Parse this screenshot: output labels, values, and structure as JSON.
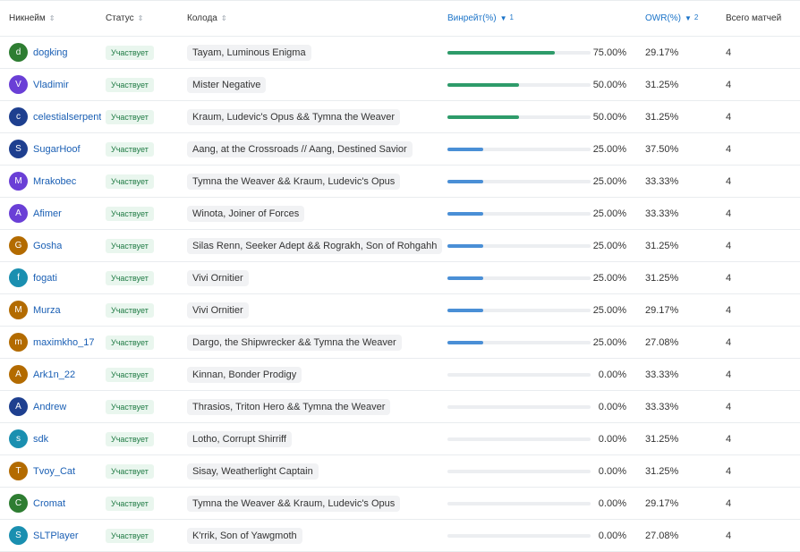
{
  "headers": {
    "nick": "Никнейм",
    "status": "Статус",
    "deck": "Колода",
    "winrate": "Винрейт(%)",
    "winrate_sup": "1",
    "owr": "OWR(%)",
    "owr_sup": "2",
    "matches": "Всего матчей"
  },
  "colors": {
    "bar_green": "#2e9b6a",
    "bar_blue": "#4a8fd6",
    "avatar_green": "#2e7d32",
    "avatar_purple": "#6a3fd6",
    "avatar_navy": "#1e3f8f",
    "avatar_orange": "#b36b00",
    "avatar_teal": "#1a8fb0"
  },
  "rows": [
    {
      "initial": "d",
      "nick": "dogking",
      "status": "Участвует",
      "deck": "Tayam, Luminous Enigma",
      "winrate": 75,
      "winrate_text": "75.00%",
      "owr": "29.17%",
      "matches": "4",
      "avatar": "#2e7d32"
    },
    {
      "initial": "V",
      "nick": "Vladimir",
      "status": "Участвует",
      "deck": "Mister Negative",
      "winrate": 50,
      "winrate_text": "50.00%",
      "owr": "31.25%",
      "matches": "4",
      "avatar": "#6a3fd6"
    },
    {
      "initial": "c",
      "nick": "celestialserpent",
      "status": "Участвует",
      "deck": "Kraum, Ludevic's Opus && Tymna the Weaver",
      "winrate": 50,
      "winrate_text": "50.00%",
      "owr": "31.25%",
      "matches": "4",
      "avatar": "#1e3f8f"
    },
    {
      "initial": "S",
      "nick": "SugarHoof",
      "status": "Участвует",
      "deck": "Aang, at the Crossroads // Aang, Destined Savior",
      "winrate": 25,
      "winrate_text": "25.00%",
      "owr": "37.50%",
      "matches": "4",
      "avatar": "#1e3f8f"
    },
    {
      "initial": "M",
      "nick": "Mrakobec",
      "status": "Участвует",
      "deck": "Tymna the Weaver && Kraum, Ludevic's Opus",
      "winrate": 25,
      "winrate_text": "25.00%",
      "owr": "33.33%",
      "matches": "4",
      "avatar": "#6a3fd6"
    },
    {
      "initial": "A",
      "nick": "Afimer",
      "status": "Участвует",
      "deck": "Winota, Joiner of Forces",
      "winrate": 25,
      "winrate_text": "25.00%",
      "owr": "33.33%",
      "matches": "4",
      "avatar": "#6a3fd6"
    },
    {
      "initial": "G",
      "nick": "Gosha",
      "status": "Участвует",
      "deck": "Silas Renn, Seeker Adept && Rograkh, Son of Rohgahh",
      "winrate": 25,
      "winrate_text": "25.00%",
      "owr": "31.25%",
      "matches": "4",
      "avatar": "#b36b00"
    },
    {
      "initial": "f",
      "nick": "fogati",
      "status": "Участвует",
      "deck": "Vivi Ornitier",
      "winrate": 25,
      "winrate_text": "25.00%",
      "owr": "31.25%",
      "matches": "4",
      "avatar": "#1a8fb0"
    },
    {
      "initial": "M",
      "nick": "Murza",
      "status": "Участвует",
      "deck": "Vivi Ornitier",
      "winrate": 25,
      "winrate_text": "25.00%",
      "owr": "29.17%",
      "matches": "4",
      "avatar": "#b36b00"
    },
    {
      "initial": "m",
      "nick": "maximkho_17",
      "status": "Участвует",
      "deck": "Dargo, the Shipwrecker && Tymna the Weaver",
      "winrate": 25,
      "winrate_text": "25.00%",
      "owr": "27.08%",
      "matches": "4",
      "avatar": "#b36b00"
    },
    {
      "initial": "A",
      "nick": "Ark1n_22",
      "status": "Участвует",
      "deck": "Kinnan, Bonder Prodigy",
      "winrate": 0,
      "winrate_text": "0.00%",
      "owr": "33.33%",
      "matches": "4",
      "avatar": "#b36b00"
    },
    {
      "initial": "A",
      "nick": "Andrew",
      "status": "Участвует",
      "deck": "Thrasios, Triton Hero && Tymna the Weaver",
      "winrate": 0,
      "winrate_text": "0.00%",
      "owr": "33.33%",
      "matches": "4",
      "avatar": "#1e3f8f"
    },
    {
      "initial": "s",
      "nick": "sdk",
      "status": "Участвует",
      "deck": "Lotho, Corrupt Shirriff",
      "winrate": 0,
      "winrate_text": "0.00%",
      "owr": "31.25%",
      "matches": "4",
      "avatar": "#1a8fb0"
    },
    {
      "initial": "T",
      "nick": "Tvoy_Cat",
      "status": "Участвует",
      "deck": "Sisay, Weatherlight Captain",
      "winrate": 0,
      "winrate_text": "0.00%",
      "owr": "31.25%",
      "matches": "4",
      "avatar": "#b36b00"
    },
    {
      "initial": "C",
      "nick": "Cromat",
      "status": "Участвует",
      "deck": "Tymna the Weaver && Kraum, Ludevic's Opus",
      "winrate": 0,
      "winrate_text": "0.00%",
      "owr": "29.17%",
      "matches": "4",
      "avatar": "#2e7d32"
    },
    {
      "initial": "S",
      "nick": "SLTPlayer",
      "status": "Участвует",
      "deck": "K'rrik, Son of Yawgmoth",
      "winrate": 0,
      "winrate_text": "0.00%",
      "owr": "27.08%",
      "matches": "4",
      "avatar": "#1a8fb0"
    }
  ]
}
